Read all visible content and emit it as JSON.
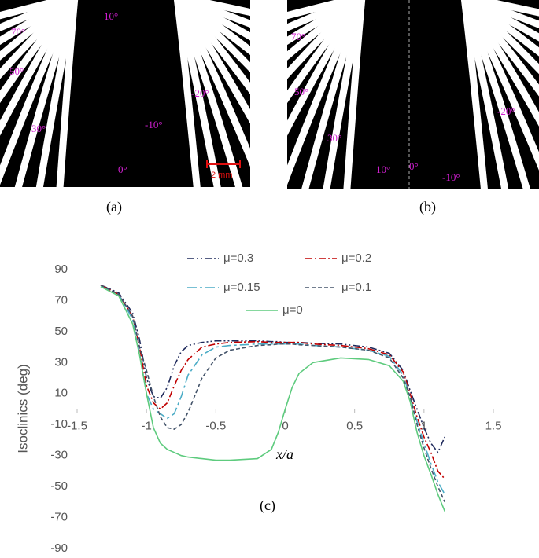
{
  "figure_a": {
    "caption": "(a)",
    "labels": [
      "70°",
      "10°",
      "50°",
      "-20°",
      "30°",
      "-10°",
      "0°"
    ],
    "scale_bar": "2 mm"
  },
  "figure_b": {
    "caption": "(b)",
    "labels": [
      "70°",
      "50°",
      "-20°",
      "30°",
      "10°",
      "0°",
      "-10°"
    ]
  },
  "chart_data": {
    "type": "line",
    "caption": "(c)",
    "x_label": "x/a",
    "y_label": "Isoclinics (deg)",
    "x": [
      -1.33,
      -1.2,
      -1.1,
      -1.05,
      -1,
      -0.95,
      -0.9,
      -0.85,
      -0.8,
      -0.75,
      -0.7,
      -0.6,
      -0.5,
      -0.4,
      -0.2,
      -0.1,
      -0.05,
      0,
      0.05,
      0.1,
      0.2,
      0.4,
      0.6,
      0.75,
      0.85,
      0.9,
      0.95,
      1,
      1.05,
      1.1,
      1.15
    ],
    "series": [
      {
        "name": "μ=0.3",
        "color": "#1f2a5c",
        "dash": "dash-dot-dot",
        "values": [
          80,
          75,
          62,
          45,
          20,
          8,
          7,
          14,
          28,
          37,
          41,
          43,
          44,
          44,
          44,
          43.5,
          43.5,
          43,
          43,
          43,
          42.5,
          42,
          40,
          36,
          25,
          12,
          0,
          -12,
          -22,
          -28,
          -18
        ]
      },
      {
        "name": "μ=0.2",
        "color": "#c00000",
        "dash": "dash-dot",
        "values": [
          80,
          74,
          60,
          40,
          15,
          4,
          0,
          4,
          15,
          25,
          32,
          40,
          42,
          43,
          43.5,
          43,
          43,
          43,
          43,
          43,
          42,
          41,
          39,
          35,
          24,
          10,
          -5,
          -18,
          -28,
          -40,
          -45
        ]
      },
      {
        "name": "μ=0.15",
        "color": "#4bacc6",
        "dash": "long-dash-dot",
        "values": [
          79,
          74,
          58,
          36,
          10,
          0,
          -3,
          -6,
          -3,
          8,
          22,
          35,
          40,
          41,
          42,
          42,
          42,
          42,
          42,
          42,
          41,
          40,
          38,
          34,
          22,
          8,
          -8,
          -22,
          -35,
          -47,
          -55
        ]
      },
      {
        "name": "μ=0.1",
        "color": "#44546a",
        "dash": "dash",
        "values": [
          80,
          74,
          60,
          40,
          25,
          8,
          -5,
          -12,
          -13,
          -10,
          -2,
          20,
          33,
          38,
          41,
          41.5,
          42,
          42,
          42,
          41.5,
          41,
          40,
          38,
          33,
          20,
          8,
          -10,
          -25,
          -38,
          -50,
          -60
        ]
      },
      {
        "name": "μ=0",
        "color": "#5ecb7e",
        "dash": "solid",
        "values": [
          79,
          73,
          55,
          35,
          10,
          -12,
          -22,
          -26,
          -28,
          -30,
          -31,
          -32,
          -33,
          -33,
          -32,
          -26,
          -15,
          0,
          14,
          23,
          30,
          33,
          32,
          28,
          18,
          5,
          -15,
          -30,
          -42,
          -55,
          -66
        ]
      }
    ],
    "xlim": [
      -1.5,
      1.5
    ],
    "xticks": [
      -1.5,
      -1,
      -0.5,
      0,
      0.5,
      1,
      1.5
    ],
    "ylim": [
      -90,
      90
    ],
    "yticks": [
      -90,
      -70,
      -50,
      -30,
      -10,
      10,
      30,
      50,
      70,
      90
    ]
  }
}
